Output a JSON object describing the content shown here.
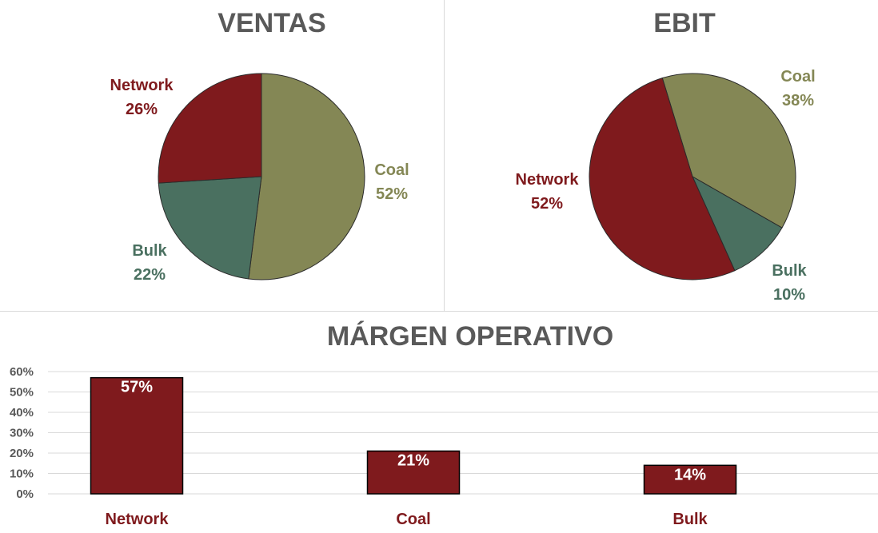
{
  "colors": {
    "network": "#7f1a1d",
    "coal": "#848755",
    "bulk": "#4a7060",
    "title": "#595959",
    "grid": "#d9d9d9",
    "axis_text": "#595959"
  },
  "chart_data": [
    {
      "type": "pie",
      "title": "VENTAS",
      "slices": [
        {
          "name": "Coal",
          "value": 52,
          "label": "52%",
          "color": "#848755"
        },
        {
          "name": "Bulk",
          "value": 22,
          "label": "22%",
          "color": "#4a7060"
        },
        {
          "name": "Network",
          "value": 26,
          "label": "26%",
          "color": "#7f1a1d"
        }
      ]
    },
    {
      "type": "pie",
      "title": "EBIT",
      "slices": [
        {
          "name": "Coal",
          "value": 38,
          "label": "38%",
          "color": "#848755"
        },
        {
          "name": "Bulk",
          "value": 10,
          "label": "10%",
          "color": "#4a7060"
        },
        {
          "name": "Network",
          "value": 52,
          "label": "52%",
          "color": "#7f1a1d"
        }
      ]
    },
    {
      "type": "bar",
      "title": "MÁRGEN OPERATIVO",
      "categories": [
        "Network",
        "Coal",
        "Bulk"
      ],
      "values": [
        57,
        21,
        14
      ],
      "data_labels": [
        "57%",
        "21%",
        "14%"
      ],
      "ylim": [
        0,
        60
      ],
      "yticks": [
        0,
        10,
        20,
        30,
        40,
        50,
        60
      ],
      "ytick_labels": [
        "0%",
        "10%",
        "20%",
        "30%",
        "40%",
        "50%",
        "60%"
      ],
      "grid": true,
      "color": "#7f1a1d"
    }
  ]
}
